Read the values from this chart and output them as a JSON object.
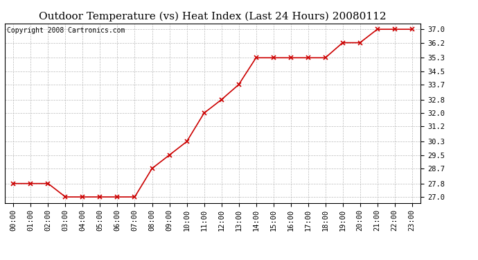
{
  "title": "Outdoor Temperature (vs) Heat Index (Last 24 Hours) 20080112",
  "copyright": "Copyright 2008 Cartronics.com",
  "x_labels": [
    "00:00",
    "01:00",
    "02:00",
    "03:00",
    "04:00",
    "05:00",
    "06:00",
    "07:00",
    "08:00",
    "09:00",
    "10:00",
    "11:00",
    "12:00",
    "13:00",
    "14:00",
    "15:00",
    "16:00",
    "17:00",
    "18:00",
    "19:00",
    "20:00",
    "21:00",
    "22:00",
    "23:00"
  ],
  "y_values": [
    27.8,
    27.8,
    27.8,
    27.0,
    27.0,
    27.0,
    27.0,
    27.0,
    28.7,
    29.5,
    30.3,
    32.0,
    32.8,
    33.7,
    35.3,
    35.3,
    35.3,
    35.3,
    35.3,
    36.2,
    36.2,
    37.0,
    37.0,
    37.0
  ],
  "y_ticks": [
    27.0,
    27.8,
    28.7,
    29.5,
    30.3,
    31.2,
    32.0,
    32.8,
    33.7,
    34.5,
    35.3,
    36.2,
    37.0
  ],
  "y_min": 26.65,
  "y_max": 37.35,
  "line_color": "#cc0000",
  "marker": "x",
  "marker_color": "#cc0000",
  "bg_color": "#ffffff",
  "grid_color": "#bbbbbb",
  "title_fontsize": 11,
  "copyright_fontsize": 7,
  "tick_fontsize": 7.5
}
